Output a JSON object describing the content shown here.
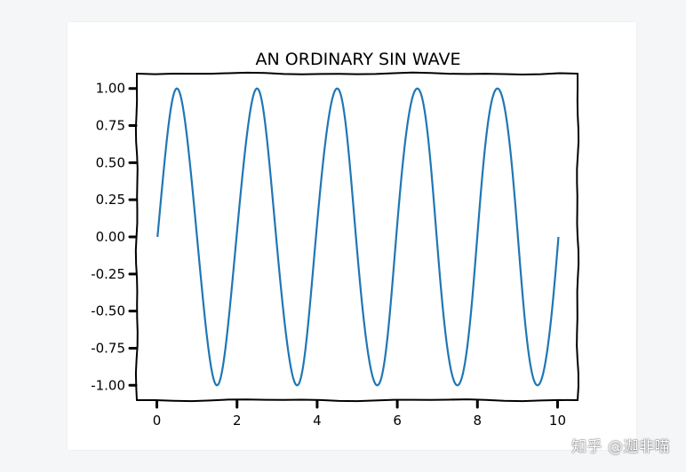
{
  "watermark": "知乎 @迦非喵",
  "chart_data": {
    "type": "line",
    "title": "AN ORDINARY SIN WAVE",
    "xlabel": "",
    "ylabel": "",
    "xlim": [
      -0.5,
      10.5
    ],
    "ylim": [
      -1.1,
      1.1
    ],
    "xticks": [
      0,
      2,
      4,
      6,
      8,
      10
    ],
    "xtick_labels": [
      "0",
      "2",
      "4",
      "6",
      "8",
      "10"
    ],
    "yticks": [
      1.0,
      0.75,
      0.5,
      0.25,
      0.0,
      -0.25,
      -0.5,
      -0.75,
      -1.0
    ],
    "ytick_labels": [
      "1.00",
      "0.75",
      "0.50",
      "0.25",
      "0.00",
      "-0.25",
      "-0.50",
      "-0.75",
      "-1.00"
    ],
    "grid": false,
    "style": "xkcd",
    "series": [
      {
        "function": "sin(pi*x)",
        "x_range": [
          0,
          10
        ],
        "color": "#1f77b4"
      }
    ]
  }
}
